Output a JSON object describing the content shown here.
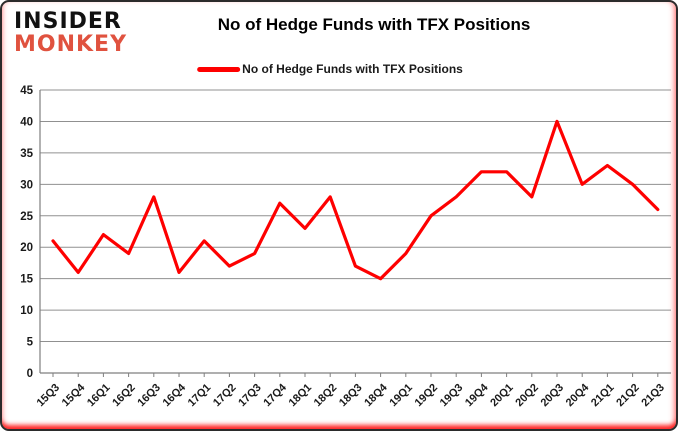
{
  "brand": {
    "line1": "INSIDER",
    "line2": "MONKEY",
    "line1_color": "#111111",
    "line2_color": "#e0523f"
  },
  "header": {
    "title": "No of Hedge Funds with TFX Positions"
  },
  "legend": {
    "label": "No of Hedge Funds with TFX Positions",
    "line_color": "#fe0000"
  },
  "chart_data": {
    "type": "line",
    "title": "No of Hedge Funds with TFX Positions",
    "categories": [
      "15Q3",
      "15Q4",
      "16Q1",
      "16Q2",
      "16Q3",
      "16Q4",
      "17Q1",
      "17Q2",
      "17Q3",
      "17Q4",
      "18Q1",
      "18Q2",
      "18Q3",
      "18Q4",
      "19Q1",
      "19Q2",
      "19Q3",
      "19Q4",
      "20Q1",
      "20Q2",
      "20Q3",
      "20Q4",
      "21Q1",
      "21Q2",
      "21Q3"
    ],
    "series": [
      {
        "name": "No of Hedge Funds with TFX Positions",
        "color": "#fe0000",
        "values": [
          21,
          16,
          22,
          19,
          28,
          16,
          21,
          17,
          19,
          27,
          23,
          28,
          17,
          15,
          19,
          25,
          28,
          32,
          32,
          28,
          40,
          30,
          33,
          30,
          26
        ]
      }
    ],
    "xlabel": "",
    "ylabel": "",
    "ylim": [
      0,
      45
    ],
    "yticks": [
      0,
      5,
      10,
      15,
      20,
      25,
      30,
      35,
      40,
      45
    ],
    "grid": "horizontal",
    "legend_position": "top",
    "axis_color": "#7f7f7f",
    "gridline_color": "#909090"
  }
}
